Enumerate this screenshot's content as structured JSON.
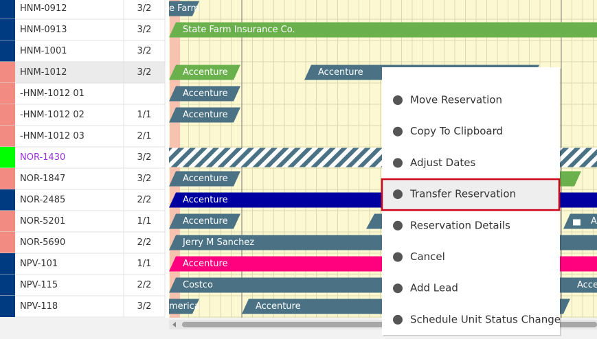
{
  "rows": [
    {
      "unit": "HNM-0912",
      "beds": "3/2",
      "color": "#003a80",
      "bars": [
        {
          "label": "e Farm",
          "color": "#4a7184"
        }
      ]
    },
    {
      "unit": "HNM-0913",
      "beds": "3/2",
      "color": "#003a80",
      "bars": [
        {
          "label": "State Farm Insurance Co.",
          "color": "#6ab04c"
        }
      ]
    },
    {
      "unit": "HNM-1001",
      "beds": "3/2",
      "color": "#003a80",
      "bars": []
    },
    {
      "unit": "HNM-1012",
      "beds": "3/2",
      "color": "#f28b82",
      "selected": true,
      "bars": [
        {
          "label": "Accenture",
          "color": "#6ab04c"
        },
        {
          "label": "Accenture",
          "color": "#4a7184"
        }
      ]
    },
    {
      "unit": "-HNM-1012 01",
      "beds": null,
      "color": "#f28b82",
      "bars": [
        {
          "label": "Accenture",
          "color": "#4a7184"
        }
      ]
    },
    {
      "unit": "-HNM-1012 02",
      "beds": "1/1",
      "color": "#f28b82",
      "bars": [
        {
          "label": "Accenture",
          "color": "#4a7184"
        }
      ]
    },
    {
      "unit": "-HNM-1012 03",
      "beds": "2/1",
      "color": "#f28b82",
      "bars": []
    },
    {
      "unit": "NOR-1430",
      "beds": "3/2",
      "color": "#00ff00",
      "unit_color": "#9b30d9",
      "bars": []
    },
    {
      "unit": "NOR-1847",
      "beds": "3/2",
      "color": "#f28b82",
      "bars": [
        {
          "label": "Accenture",
          "color": "#4a7184"
        }
      ]
    },
    {
      "unit": "NOR-2485",
      "beds": "2/2",
      "color": "#003a80",
      "bars": [
        {
          "label": "Accenture",
          "color": "#0000a0"
        }
      ]
    },
    {
      "unit": "NOR-5201",
      "beds": "1/1",
      "color": "#f28b82",
      "bars": [
        {
          "label": "Accenture",
          "color": "#4a7184"
        },
        {
          "label": "A",
          "color": "#4a7184"
        }
      ]
    },
    {
      "unit": "NOR-5690",
      "beds": "2/2",
      "color": "#f28b82",
      "bars": [
        {
          "label": "Jerry M Sanchez",
          "color": "#4a7184"
        }
      ]
    },
    {
      "unit": "NPV-101",
      "beds": "1/1",
      "color": "#003a80",
      "bars": [
        {
          "label": "Accenture",
          "color": "#ff007f"
        }
      ]
    },
    {
      "unit": "NPV-115",
      "beds": "2/2",
      "color": "#003a80",
      "bars": [
        {
          "label": "Costco",
          "color": "#4a7184"
        },
        {
          "label": "Accen",
          "color": "#4a7184"
        }
      ]
    },
    {
      "unit": "NPV-118",
      "beds": "3/2",
      "color": "#003a80",
      "bars": [
        {
          "label": "merica",
          "color": "#4a7184"
        },
        {
          "label": "Accenture",
          "color": "#4a7184"
        }
      ]
    }
  ],
  "menu": [
    "Move Reservation",
    "Copy To Clipboard",
    "Adjust Dates",
    "Transfer Reservation",
    "Reservation Details",
    "Cancel",
    "Add Lead",
    "Schedule Unit Status Change"
  ],
  "menu_highlighted": 3
}
